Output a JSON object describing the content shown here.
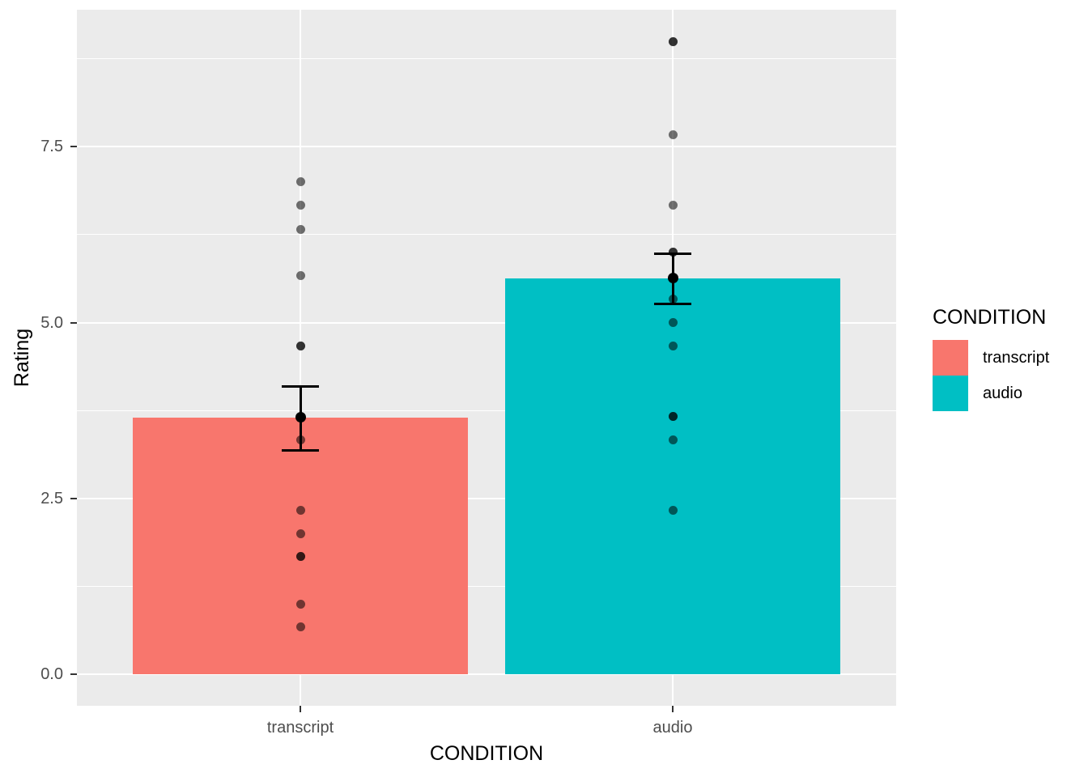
{
  "chart_data": {
    "type": "bar",
    "title": "",
    "xlabel": "CONDITION",
    "ylabel": "Rating",
    "categories": [
      "transcript",
      "audio"
    ],
    "ylim": [
      -0.45,
      9.45
    ],
    "grid": true,
    "legend_position": "right",
    "yticks": {
      "major": [
        0.0,
        2.5,
        5.0,
        7.5
      ],
      "major_labels": [
        "0.0",
        "2.5",
        "5.0",
        "7.5"
      ],
      "minor": [
        1.25,
        3.75,
        6.25,
        8.75
      ]
    },
    "bar_width_fraction": 0.9,
    "series": [
      {
        "name": "transcript",
        "color": "#F8766D",
        "mean": 3.65,
        "error_low": 3.18,
        "error_high": 4.09,
        "points": [
          {
            "v": 7.0,
            "n": 1
          },
          {
            "v": 6.67,
            "n": 1
          },
          {
            "v": 6.33,
            "n": 1
          },
          {
            "v": 5.67,
            "n": 1
          },
          {
            "v": 4.67,
            "n": 2
          },
          {
            "v": 3.33,
            "n": 1
          },
          {
            "v": 2.33,
            "n": 1
          },
          {
            "v": 2.0,
            "n": 1
          },
          {
            "v": 1.67,
            "n": 2
          },
          {
            "v": 1.0,
            "n": 1
          },
          {
            "v": 0.67,
            "n": 1
          }
        ]
      },
      {
        "name": "audio",
        "color": "#00BFC4",
        "mean": 5.63,
        "error_low": 5.26,
        "error_high": 5.98,
        "points": [
          {
            "v": 9.0,
            "n": 2
          },
          {
            "v": 7.67,
            "n": 1
          },
          {
            "v": 6.67,
            "n": 1
          },
          {
            "v": 6.0,
            "n": 2
          },
          {
            "v": 5.33,
            "n": 1
          },
          {
            "v": 5.0,
            "n": 1
          },
          {
            "v": 4.67,
            "n": 1
          },
          {
            "v": 3.67,
            "n": 2
          },
          {
            "v": 3.33,
            "n": 1
          },
          {
            "v": 2.33,
            "n": 1
          }
        ]
      }
    ]
  },
  "legend": {
    "title": "CONDITION",
    "entries": [
      {
        "label": "transcript",
        "color": "#F8766D"
      },
      {
        "label": "audio",
        "color": "#00BFC4"
      }
    ]
  },
  "colors": {
    "panel_bg": "#EBEBEB",
    "grid": "#FFFFFF",
    "axis_text": "#4D4D4D",
    "axis_title": "#000000",
    "tick_mark": "#333333",
    "point": "#000000",
    "point_alpha": 0.55,
    "errorbar": "#000000"
  }
}
